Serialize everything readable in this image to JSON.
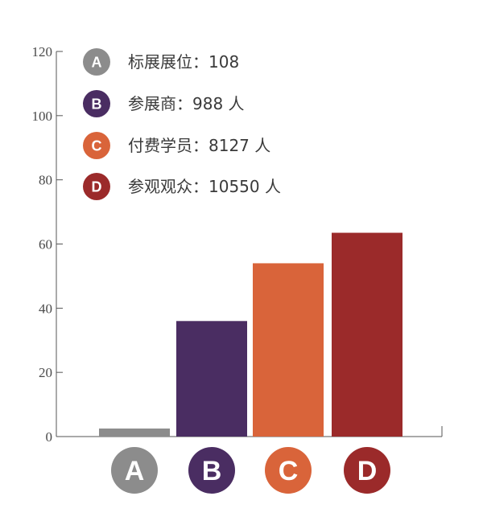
{
  "chart_data": {
    "type": "bar",
    "categories": [
      "A",
      "B",
      "C",
      "D"
    ],
    "values": [
      2.5,
      36,
      54,
      63.5
    ],
    "ylim": [
      0,
      120
    ],
    "yticks": [
      0,
      20,
      40,
      60,
      80,
      100,
      120
    ],
    "ytick_labels": [
      "0",
      "20",
      "40",
      "60",
      "80",
      "100",
      "120"
    ],
    "grid": false,
    "legend_position": "top-left",
    "colors": [
      "#8c8c8c",
      "#4a2d62",
      "#d9643a",
      "#9b2a2a"
    ],
    "legend": [
      {
        "badge": "A",
        "text": "标展展位：108"
      },
      {
        "badge": "B",
        "text": "参展商：988 人"
      },
      {
        "badge": "C",
        "text": "付费学员：8127 人"
      },
      {
        "badge": "D",
        "text": "参观观众：10550 人"
      }
    ]
  }
}
